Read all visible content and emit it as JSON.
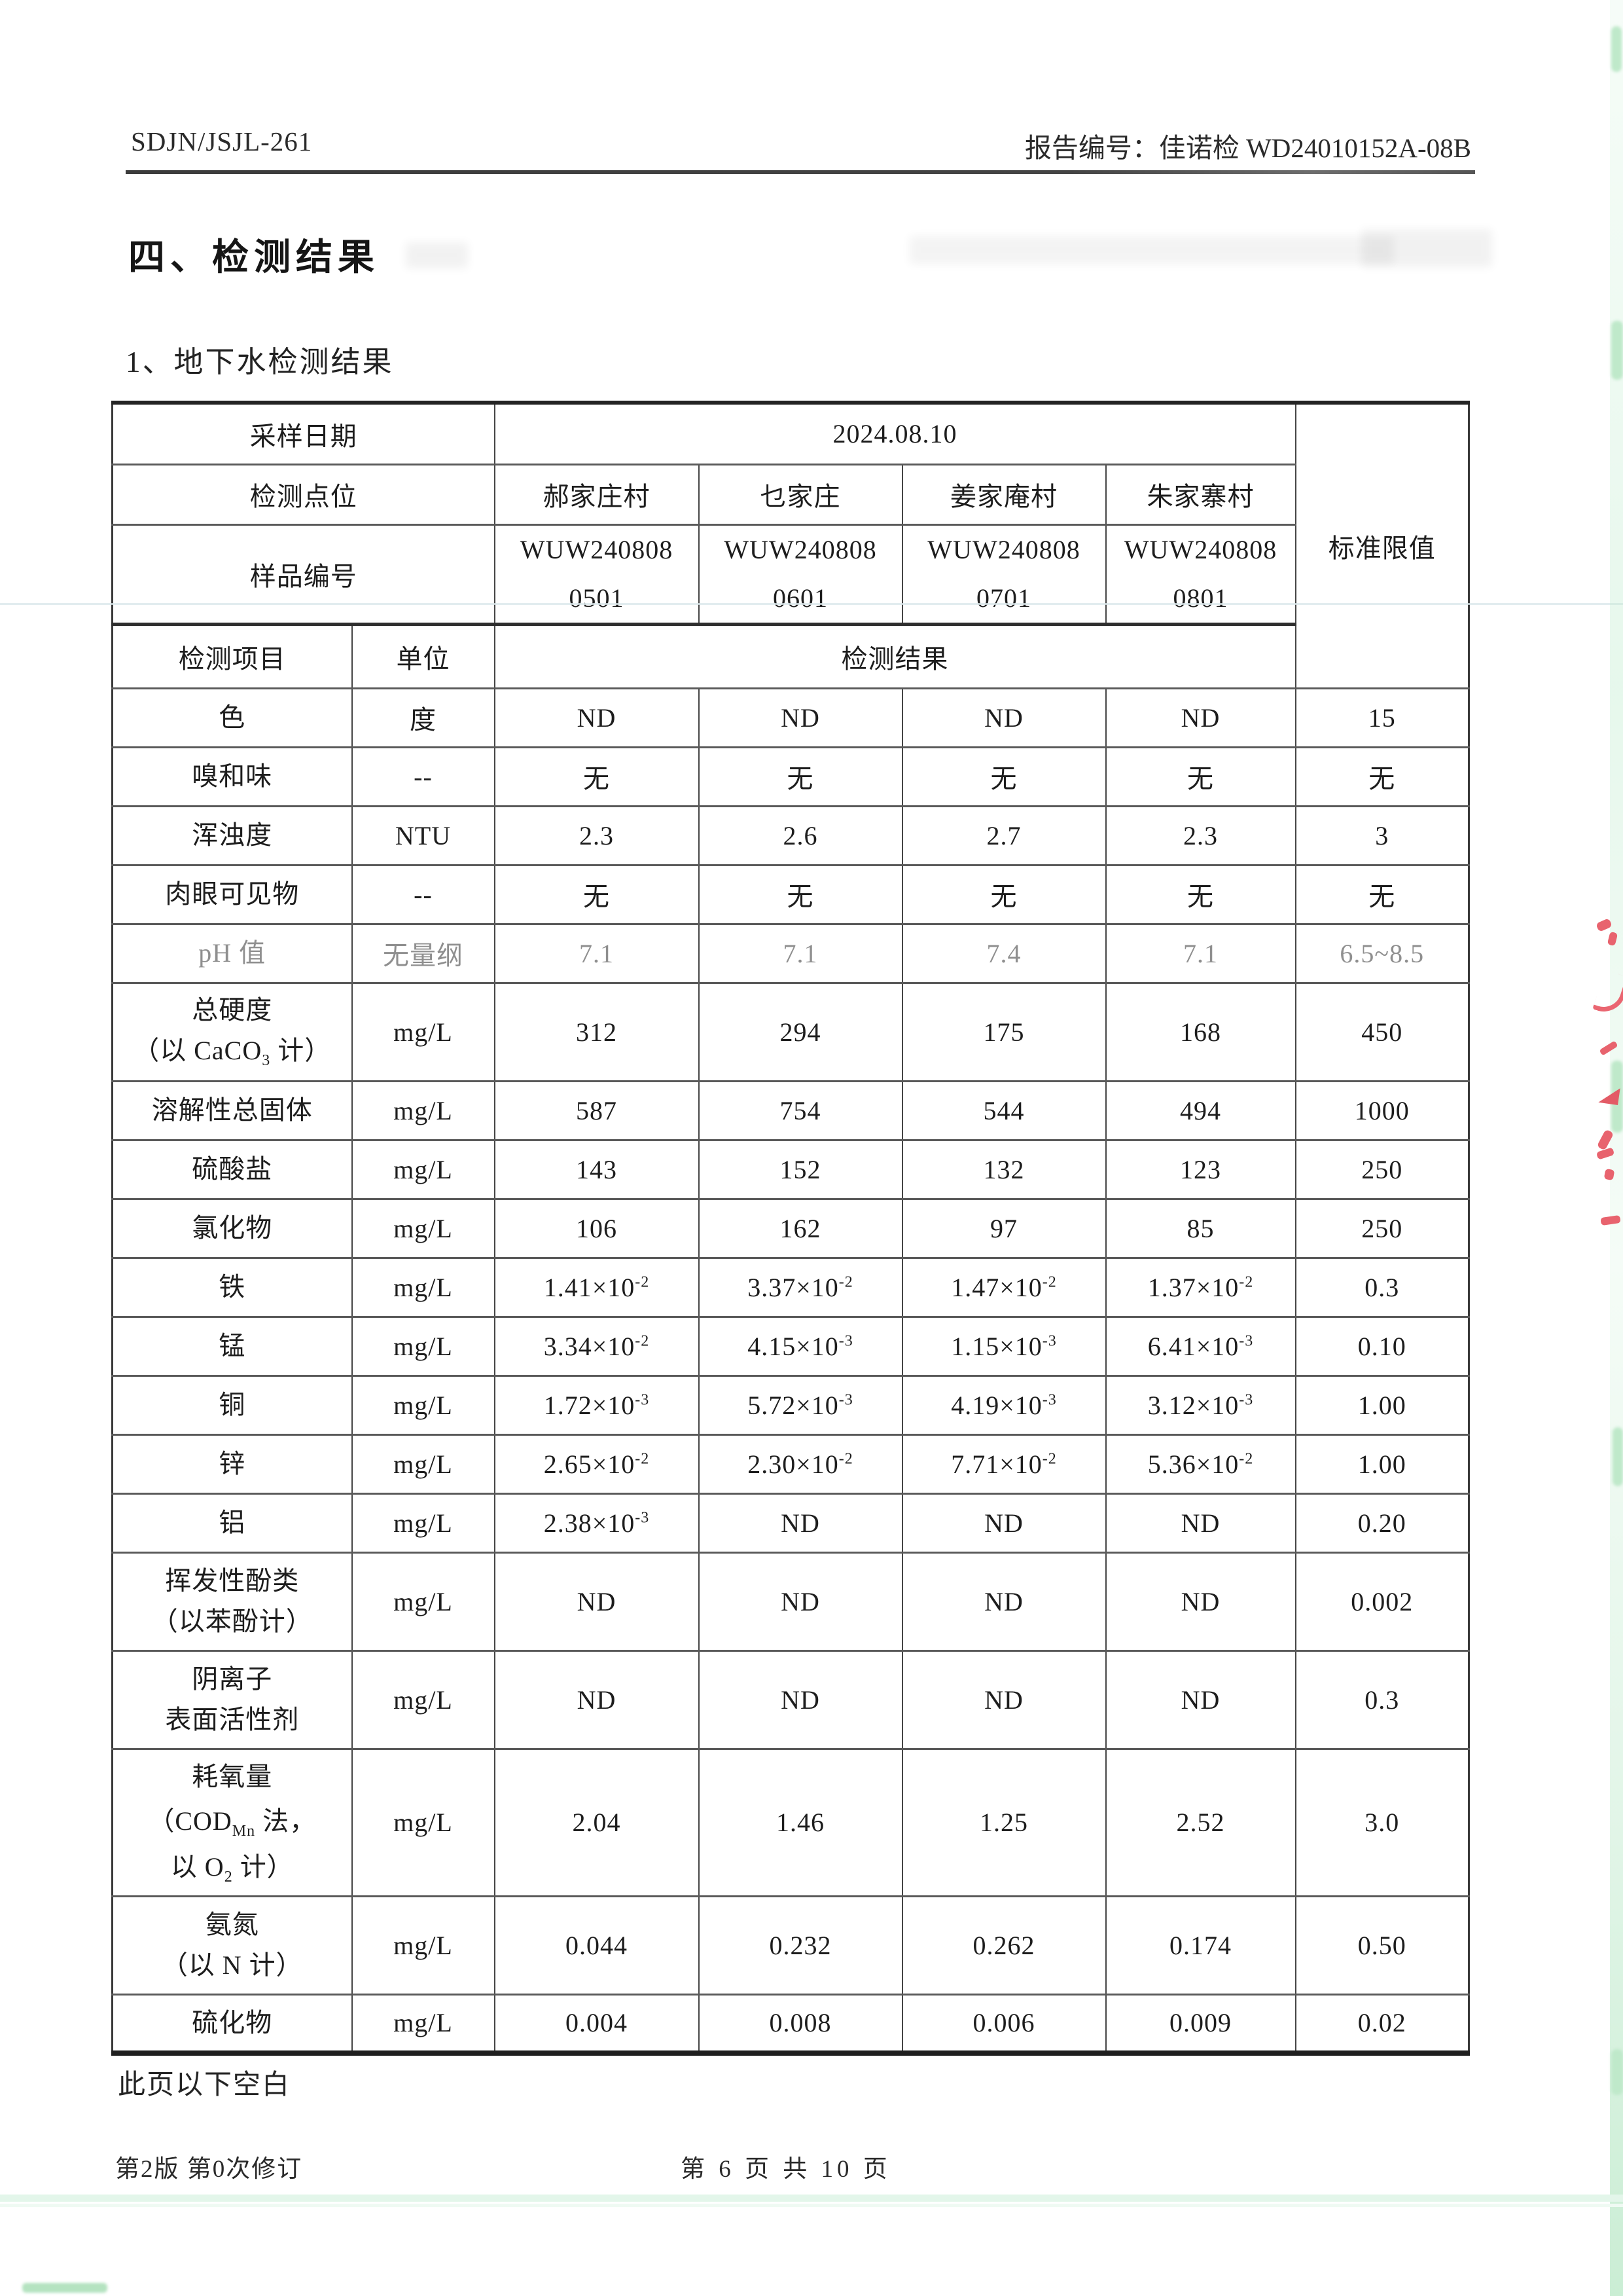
{
  "page": {
    "doc_code": "SDJN/JSJL-261",
    "report_no": "报告编号：佳诺检 WD24010152A-08B",
    "section_title": "四、检测结果",
    "subsection_title": "1、地下水检测结果",
    "below_blank_note": "此页以下空白",
    "footer_left": "第2版 第0次修订",
    "footer_center": "第 6 页 共 10 页"
  },
  "table": {
    "header": {
      "sampling_date_label": "采样日期",
      "sampling_date_value": "2024.08.10",
      "site_label": "检测点位",
      "sites": [
        "郝家庄村",
        "乜家庄",
        "姜家庵村",
        "朱家寨村"
      ],
      "sample_no_label": "样品编号",
      "sample_nos": [
        [
          "WUW240808",
          "0501"
        ],
        [
          "WUW240808",
          "0601"
        ],
        [
          "WUW240808",
          "0701"
        ],
        [
          "WUW240808",
          "0801"
        ]
      ],
      "item_label": "检测项目",
      "unit_label": "单位",
      "result_label": "检测结果",
      "limit_label": "标准限值"
    },
    "rows": [
      {
        "item": [
          "色"
        ],
        "unit": "度",
        "values": [
          "ND",
          "ND",
          "ND",
          "ND"
        ],
        "limit": "15"
      },
      {
        "item": [
          "嗅和味"
        ],
        "unit": "--",
        "values": [
          "无",
          "无",
          "无",
          "无"
        ],
        "limit": "无"
      },
      {
        "item": [
          "浑浊度"
        ],
        "unit": "NTU",
        "values": [
          "2.3",
          "2.6",
          "2.7",
          "2.3"
        ],
        "limit": "3"
      },
      {
        "item": [
          "肉眼可见物"
        ],
        "unit": "--",
        "values": [
          "无",
          "无",
          "无",
          "无"
        ],
        "limit": "无"
      },
      {
        "item": [
          "pH 值"
        ],
        "unit": "无量纲",
        "values": [
          "7.1",
          "7.1",
          "7.4",
          "7.1"
        ],
        "limit": "6.5~8.5",
        "muted": true
      },
      {
        "item": [
          "总硬度",
          "（以 CaCO<sub>3</sub> 计）"
        ],
        "unit": "mg/L",
        "values": [
          "312",
          "294",
          "175",
          "168"
        ],
        "limit": "450"
      },
      {
        "item": [
          "溶解性总固体"
        ],
        "unit": "mg/L",
        "values": [
          "587",
          "754",
          "544",
          "494"
        ],
        "limit": "1000"
      },
      {
        "item": [
          "硫酸盐"
        ],
        "unit": "mg/L",
        "values": [
          "143",
          "152",
          "132",
          "123"
        ],
        "limit": "250"
      },
      {
        "item": [
          "氯化物"
        ],
        "unit": "mg/L",
        "values": [
          "106",
          "162",
          "97",
          "85"
        ],
        "limit": "250"
      },
      {
        "item": [
          "铁"
        ],
        "unit": "mg/L",
        "values": [
          "1.41×10<sup>-2</sup>",
          "3.37×10<sup>-2</sup>",
          "1.47×10<sup>-2</sup>",
          "1.37×10<sup>-2</sup>"
        ],
        "limit": "0.3"
      },
      {
        "item": [
          "锰"
        ],
        "unit": "mg/L",
        "values": [
          "3.34×10<sup>-2</sup>",
          "4.15×10<sup>-3</sup>",
          "1.15×10<sup>-3</sup>",
          "6.41×10<sup>-3</sup>"
        ],
        "limit": "0.10"
      },
      {
        "item": [
          "铜"
        ],
        "unit": "mg/L",
        "values": [
          "1.72×10<sup>-3</sup>",
          "5.72×10<sup>-3</sup>",
          "4.19×10<sup>-3</sup>",
          "3.12×10<sup>-3</sup>"
        ],
        "limit": "1.00"
      },
      {
        "item": [
          "锌"
        ],
        "unit": "mg/L",
        "values": [
          "2.65×10<sup>-2</sup>",
          "2.30×10<sup>-2</sup>",
          "7.71×10<sup>-2</sup>",
          "5.36×10<sup>-2</sup>"
        ],
        "limit": "1.00"
      },
      {
        "item": [
          "铝"
        ],
        "unit": "mg/L",
        "values": [
          "2.38×10<sup>-3</sup>",
          "ND",
          "ND",
          "ND"
        ],
        "limit": "0.20"
      },
      {
        "item": [
          "挥发性酚类",
          "（以苯酚计）"
        ],
        "unit": "mg/L",
        "values": [
          "ND",
          "ND",
          "ND",
          "ND"
        ],
        "limit": "0.002"
      },
      {
        "item": [
          "阴离子",
          "表面活性剂"
        ],
        "unit": "mg/L",
        "values": [
          "ND",
          "ND",
          "ND",
          "ND"
        ],
        "limit": "0.3"
      },
      {
        "item": [
          "耗氧量",
          "（COD<sub>Mn</sub> 法，",
          "以 O<sub>2</sub> 计）"
        ],
        "unit": "mg/L",
        "values": [
          "2.04",
          "1.46",
          "1.25",
          "2.52"
        ],
        "limit": "3.0"
      },
      {
        "item": [
          "氨氮",
          "（以 N 计）"
        ],
        "unit": "mg/L",
        "values": [
          "0.044",
          "0.232",
          "0.262",
          "0.174"
        ],
        "limit": "0.50"
      },
      {
        "item": [
          "硫化物"
        ],
        "unit": "mg/L",
        "values": [
          "0.004",
          "0.008",
          "0.006",
          "0.009"
        ],
        "limit": "0.02"
      }
    ]
  },
  "artifact_colors": {
    "red_pen": "#e8636e",
    "green_edge": "#bfe9ca",
    "scan_line": "#dbe7eb"
  }
}
